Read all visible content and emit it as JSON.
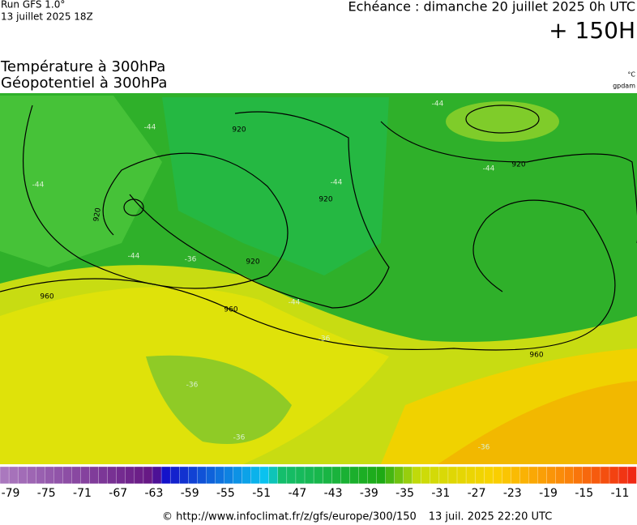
{
  "header": {
    "run": "Run GFS 1.0°",
    "run_date": "13 juillet 2025 18Z",
    "valid": "Echéance : dimanche 20 juillet 2025 0h UTC",
    "lead": "+ 150H",
    "title_1": "Température à 300hPa",
    "title_2": "Géopotentiel à 300hPa",
    "unit_1": "°C",
    "unit_2": "gpdam"
  },
  "map": {
    "contour_labels": [
      "920",
      "920",
      "920",
      "920",
      "920",
      "960",
      "960",
      "960",
      "-44",
      "-44",
      "-44",
      "-44",
      "-44",
      "-44",
      "-44",
      "-36",
      "-36",
      "-36",
      "-36",
      "-36"
    ]
  },
  "legend": {
    "ticks": [
      -79,
      -75,
      -71,
      -67,
      -63,
      -59,
      -55,
      -51,
      -47,
      -43,
      -39,
      -35,
      -31,
      -27,
      -23,
      -19,
      -15,
      -11
    ]
  },
  "footer": {
    "url": "© http://www.infoclimat.fr/z/gfs/europe/300/150",
    "date": "13 juil. 2025 22:20 UTC"
  }
}
